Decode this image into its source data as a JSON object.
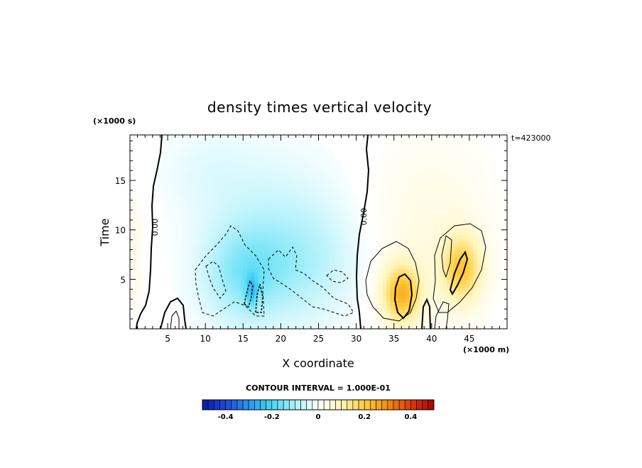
{
  "chart_data": {
    "type": "contour",
    "title": "density times vertical velocity",
    "xlabel": "X coordinate",
    "ylabel": "Time",
    "x_unit": "(×1000 m)",
    "y_unit": "(×1000 s)",
    "time_stamp": "t=423000",
    "x_range": [
      0,
      50
    ],
    "y_range": [
      0,
      19.6
    ],
    "x_ticks": [
      5,
      10,
      15,
      20,
      25,
      30,
      35,
      40,
      45
    ],
    "y_ticks": [
      5,
      10,
      15
    ],
    "contour_label_left": "0.00",
    "contour_label_mid": "0.00",
    "contour_interval_text": "CONTOUR INTERVAL = 1.000E-01",
    "colorbar": {
      "range": [
        -0.5,
        0.5
      ],
      "ticks": [
        -0.4,
        -0.2,
        0,
        0.2,
        0.4
      ],
      "tick_labels": [
        "-0.4",
        "-0.2",
        "0",
        "0.2",
        "0.4"
      ],
      "low_color": "#0a1aa0",
      "mid_color": "#ffffff",
      "high_color": "#b00000"
    },
    "features": [
      {
        "kind": "negative",
        "x": 15,
        "y": 5.5,
        "sx": 5.5,
        "sy": 5.0,
        "amp": -0.12
      },
      {
        "kind": "negative",
        "x": 23,
        "y": 6.5,
        "sx": 7.0,
        "sy": 6.0,
        "amp": -0.08
      },
      {
        "kind": "negative",
        "x": 16.2,
        "y": 3.8,
        "sx": 0.8,
        "sy": 1.6,
        "amp": -0.12
      },
      {
        "kind": "negative",
        "x": 18,
        "y": 12,
        "sx": 9.0,
        "sy": 7.0,
        "amp": -0.04
      },
      {
        "kind": "negative",
        "x": 10,
        "y": 16,
        "sx": 6.0,
        "sy": 4.0,
        "amp": -0.025
      },
      {
        "kind": "positive",
        "x": 36,
        "y": 3.5,
        "sx": 2.6,
        "sy": 3.0,
        "amp": 0.23
      },
      {
        "kind": "positive",
        "x": 44,
        "y": 6.0,
        "sx": 2.6,
        "sy": 3.4,
        "amp": 0.19
      },
      {
        "kind": "positive",
        "x": 40,
        "y": 10,
        "sx": 8.0,
        "sy": 9.0,
        "amp": 0.04
      },
      {
        "kind": "positive",
        "x": 0.5,
        "y": 8,
        "sx": 1.5,
        "sy": 6.0,
        "amp": 0.03
      }
    ]
  }
}
